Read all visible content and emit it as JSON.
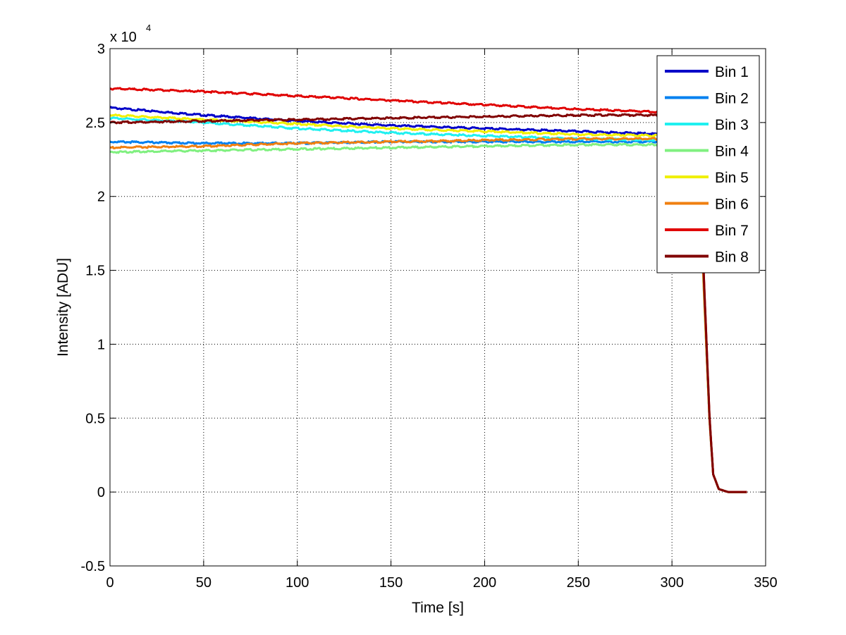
{
  "chart_data": {
    "type": "line",
    "xlabel": "Time [s]",
    "ylabel": "Intensity [ADU]",
    "y_multiplier_label": "x 10",
    "y_multiplier_exponent": "4",
    "xlim": [
      0,
      350
    ],
    "ylim": [
      -0.5,
      3
    ],
    "xticks": [
      "0",
      "50",
      "100",
      "150",
      "200",
      "250",
      "300",
      "350"
    ],
    "yticks": [
      "-0.5",
      "0",
      "0.5",
      "1",
      "1.5",
      "2",
      "2.5",
      "3"
    ],
    "grid": true,
    "grid_style": "dotted",
    "legend_position": "top-right",
    "series": [
      {
        "name": "Bin 1",
        "color": "#0000c8",
        "x": [
          0,
          50,
          100,
          150,
          200,
          250,
          300,
          312,
          315,
          318,
          320,
          322,
          325,
          330,
          340
        ],
        "y": [
          2.6,
          2.55,
          2.51,
          2.48,
          2.46,
          2.44,
          2.42,
          2.41,
          2.0,
          1.1,
          0.5,
          0.12,
          0.02,
          0.0,
          0.0
        ]
      },
      {
        "name": "Bin 2",
        "color": "#0080f0",
        "x": [
          0,
          50,
          100,
          150,
          200,
          250,
          300,
          312,
          315,
          318,
          320,
          322,
          325,
          330,
          340
        ],
        "y": [
          2.37,
          2.36,
          2.36,
          2.37,
          2.37,
          2.37,
          2.37,
          2.37,
          1.97,
          1.08,
          0.5,
          0.12,
          0.02,
          0.0,
          0.0
        ]
      },
      {
        "name": "Bin 3",
        "color": "#20f0f0",
        "x": [
          0,
          50,
          100,
          150,
          200,
          250,
          300,
          312,
          315,
          318,
          320,
          322,
          325,
          330,
          340
        ],
        "y": [
          2.53,
          2.5,
          2.46,
          2.43,
          2.41,
          2.39,
          2.38,
          2.38,
          1.98,
          1.09,
          0.5,
          0.12,
          0.02,
          0.0,
          0.0
        ]
      },
      {
        "name": "Bin 4",
        "color": "#80f080",
        "x": [
          0,
          50,
          100,
          150,
          200,
          250,
          300,
          312,
          315,
          318,
          320,
          322,
          325,
          330,
          340
        ],
        "y": [
          2.3,
          2.31,
          2.32,
          2.33,
          2.34,
          2.35,
          2.35,
          2.35,
          1.96,
          1.07,
          0.5,
          0.12,
          0.02,
          0.0,
          0.0
        ]
      },
      {
        "name": "Bin 5",
        "color": "#f0f000",
        "x": [
          0,
          50,
          100,
          150,
          200,
          250,
          300,
          312,
          315,
          318,
          320,
          322,
          325,
          330,
          340
        ],
        "y": [
          2.55,
          2.52,
          2.49,
          2.46,
          2.44,
          2.42,
          2.41,
          2.4,
          2.0,
          1.1,
          0.5,
          0.12,
          0.02,
          0.0,
          0.0
        ]
      },
      {
        "name": "Bin 6",
        "color": "#f08010",
        "x": [
          0,
          50,
          100,
          150,
          200,
          250,
          300,
          312,
          315,
          318,
          320,
          322,
          325,
          330,
          340
        ],
        "y": [
          2.33,
          2.34,
          2.36,
          2.37,
          2.38,
          2.39,
          2.39,
          2.39,
          1.99,
          1.09,
          0.5,
          0.12,
          0.02,
          0.0,
          0.0
        ]
      },
      {
        "name": "Bin 7",
        "color": "#e00000",
        "x": [
          0,
          50,
          100,
          150,
          200,
          250,
          300,
          312,
          315,
          318,
          320,
          322,
          325,
          330,
          340
        ],
        "y": [
          2.73,
          2.71,
          2.68,
          2.65,
          2.62,
          2.59,
          2.57,
          2.56,
          2.1,
          1.15,
          0.52,
          0.12,
          0.02,
          0.0,
          0.0
        ]
      },
      {
        "name": "Bin 8",
        "color": "#800000",
        "x": [
          0,
          50,
          100,
          150,
          200,
          250,
          300,
          312,
          315,
          318,
          320,
          322,
          325,
          330,
          340
        ],
        "y": [
          2.5,
          2.51,
          2.52,
          2.53,
          2.54,
          2.55,
          2.55,
          2.55,
          2.1,
          1.15,
          0.52,
          0.12,
          0.02,
          0.0,
          0.0
        ]
      }
    ]
  }
}
